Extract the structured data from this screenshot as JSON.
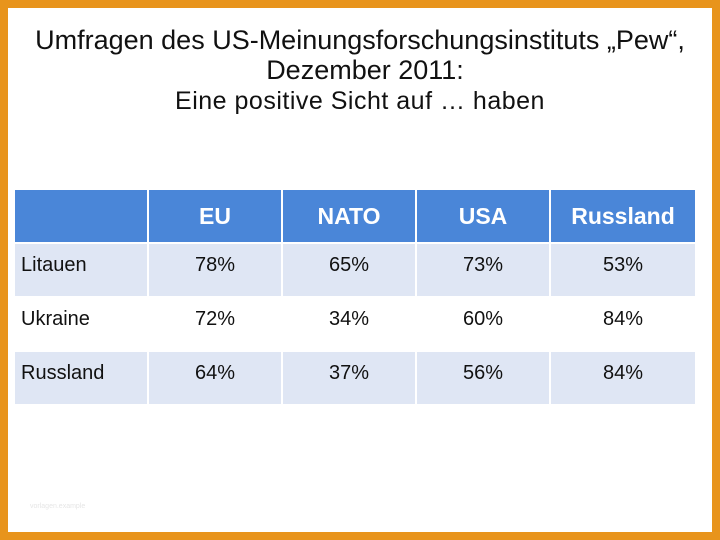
{
  "slide": {
    "title_line1": "Umfragen des US-Meinungsforschungsinstituts „Pew“,",
    "title_line2": "Dezember 2011:",
    "subtitle": "Eine positive Sicht auf … haben",
    "footer_faint": "vorlagen.example",
    "colors": {
      "frame": "#e8941c",
      "header_bg": "#4a86d8",
      "band_light": "#dfe6f4"
    }
  },
  "table": {
    "columns": [
      "",
      "EU",
      "NATO",
      "USA",
      "Russland"
    ],
    "rows": [
      {
        "label": "Litauen",
        "values": [
          "78%",
          "65%",
          "73%",
          "53%"
        ]
      },
      {
        "label": "Ukraine",
        "values": [
          "72%",
          "34%",
          "60%",
          "84%"
        ]
      },
      {
        "label": "Russland",
        "values": [
          "64%",
          "37%",
          "56%",
          "84%"
        ]
      }
    ]
  }
}
